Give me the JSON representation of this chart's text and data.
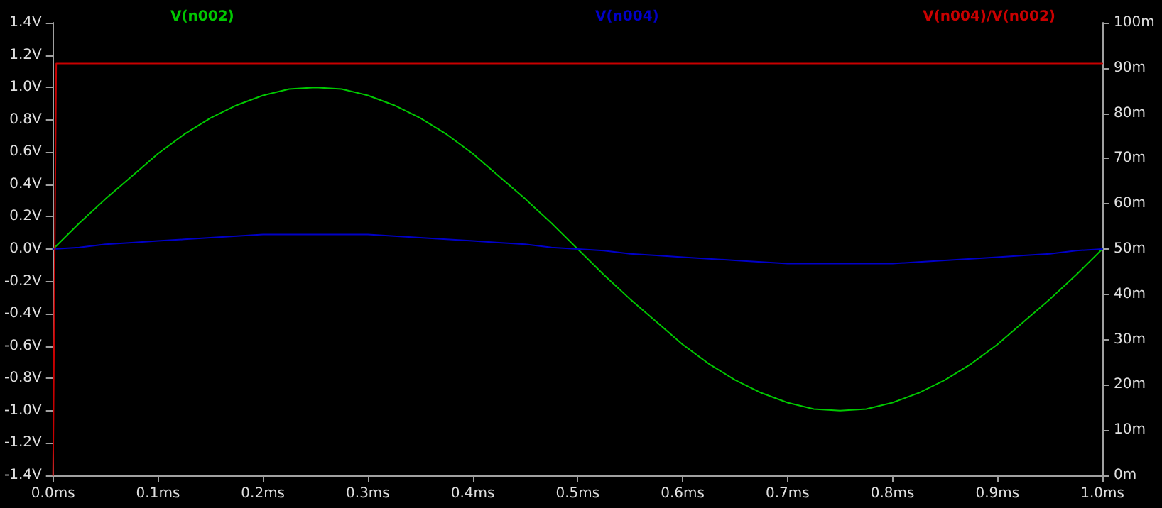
{
  "chart_data": {
    "type": "line",
    "legend": "top",
    "grid": false,
    "marker": "none",
    "line_style": "solid",
    "x": [
      0,
      0.025,
      0.05,
      0.075,
      0.1,
      0.125,
      0.15,
      0.175,
      0.2,
      0.225,
      0.25,
      0.275,
      0.3,
      0.325,
      0.35,
      0.375,
      0.4,
      0.425,
      0.45,
      0.475,
      0.5,
      0.525,
      0.55,
      0.575,
      0.6,
      0.625,
      0.65,
      0.675,
      0.7,
      0.725,
      0.75,
      0.775,
      0.8,
      0.825,
      0.85,
      0.875,
      0.9,
      0.925,
      0.95,
      0.975,
      1.0
    ],
    "series": [
      {
        "name": "V(n002)",
        "color": "#00c800",
        "values": [
          0,
          0.16,
          0.31,
          0.45,
          0.59,
          0.71,
          0.81,
          0.89,
          0.95,
          0.99,
          1,
          0.99,
          0.95,
          0.89,
          0.81,
          0.71,
          0.59,
          0.45,
          0.31,
          0.16,
          0,
          -0.16,
          -0.31,
          -0.45,
          -0.59,
          -0.71,
          -0.81,
          -0.89,
          -0.95,
          -0.99,
          -1,
          -0.99,
          -0.95,
          -0.89,
          -0.81,
          -0.71,
          -0.59,
          -0.45,
          -0.31,
          -0.16,
          0
        ]
      },
      {
        "name": "V(n004)",
        "color": "#0000c8",
        "values": [
          0,
          0.01,
          0.03,
          0.04,
          0.05,
          0.06,
          0.07,
          0.08,
          0.09,
          0.09,
          0.09,
          0.09,
          0.09,
          0.08,
          0.07,
          0.06,
          0.05,
          0.04,
          0.03,
          0.01,
          0,
          -0.01,
          -0.03,
          -0.04,
          -0.05,
          -0.06,
          -0.07,
          -0.08,
          -0.09,
          -0.09,
          -0.09,
          -0.09,
          -0.09,
          -0.08,
          -0.07,
          -0.06,
          -0.05,
          -0.04,
          -0.03,
          -0.01,
          0
        ]
      },
      {
        "name": "V(n004)/V(n002)",
        "color": "#c80000",
        "axis": "y2",
        "x": [
          0,
          0.003,
          1.0
        ],
        "values": [
          0,
          91,
          91
        ]
      }
    ],
    "xlim": [
      0,
      1.0
    ],
    "xticks": [
      {
        "value": 0,
        "label": "0.0ms"
      },
      {
        "value": 0.1,
        "label": "0.1ms"
      },
      {
        "value": 0.2,
        "label": "0.2ms"
      },
      {
        "value": 0.3,
        "label": "0.3ms"
      },
      {
        "value": 0.4,
        "label": "0.4ms"
      },
      {
        "value": 0.5,
        "label": "0.5ms"
      },
      {
        "value": 0.6,
        "label": "0.6ms"
      },
      {
        "value": 0.7,
        "label": "0.7ms"
      },
      {
        "value": 0.8,
        "label": "0.8ms"
      },
      {
        "value": 0.9,
        "label": "0.9ms"
      },
      {
        "value": 1.0,
        "label": "1.0ms"
      }
    ],
    "ylim": [
      -1.4,
      1.4
    ],
    "yticks": [
      {
        "value": -1.4,
        "label": "-1.4V"
      },
      {
        "value": -1.2,
        "label": "-1.2V"
      },
      {
        "value": -1.0,
        "label": "-1.0V"
      },
      {
        "value": -0.8,
        "label": "-0.8V"
      },
      {
        "value": -0.6,
        "label": "-0.6V"
      },
      {
        "value": -0.4,
        "label": "-0.4V"
      },
      {
        "value": -0.2,
        "label": "-0.2V"
      },
      {
        "value": 0,
        "label": "0.0V"
      },
      {
        "value": 0.2,
        "label": "0.2V"
      },
      {
        "value": 0.4,
        "label": "0.4V"
      },
      {
        "value": 0.6,
        "label": "0.6V"
      },
      {
        "value": 0.8,
        "label": "0.8V"
      },
      {
        "value": 1.0,
        "label": "1.0V"
      },
      {
        "value": 1.2,
        "label": "1.2V"
      },
      {
        "value": 1.4,
        "label": "1.4V"
      }
    ],
    "y2lim": [
      0,
      100
    ],
    "y2ticks": [
      {
        "value": 0,
        "label": "0m"
      },
      {
        "value": 10,
        "label": "10m"
      },
      {
        "value": 20,
        "label": "20m"
      },
      {
        "value": 30,
        "label": "30m"
      },
      {
        "value": 40,
        "label": "40m"
      },
      {
        "value": 50,
        "label": "50m"
      },
      {
        "value": 60,
        "label": "60m"
      },
      {
        "value": 70,
        "label": "70m"
      },
      {
        "value": 80,
        "label": "80m"
      },
      {
        "value": 90,
        "label": "90m"
      },
      {
        "value": 100,
        "label": "100m"
      }
    ]
  }
}
